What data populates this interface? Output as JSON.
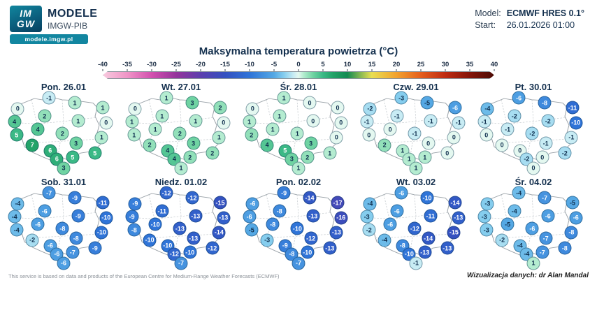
{
  "header": {
    "logo_line1": "IM",
    "logo_line2": "GW",
    "brand_title": "MODELE",
    "brand_subtitle": "IMGW-PIB",
    "brand_url": "modele.imgw.pl",
    "model_label": "Model:",
    "model_value": "ECMWF HRES 0.1°",
    "start_label": "Start:",
    "start_value": "26.01.2026 01:00"
  },
  "title": "Maksymalna temperatura powietrza (°C)",
  "footer": {
    "left": "This service is based on data and products of the European Centre for Medium-Range Weather Forecasts (ECMWF)",
    "right": "Wizualizacja danych: dr Alan Mandal"
  },
  "chart_data": {
    "type": "heatmap",
    "title": "Maksymalna temperatura powietrza (°C)",
    "unit": "°C",
    "colorbar": {
      "min": -40,
      "max": 40,
      "ticks": [
        -40,
        -35,
        -30,
        -25,
        -20,
        -15,
        -10,
        -5,
        0,
        5,
        10,
        15,
        20,
        25,
        30,
        35,
        40
      ],
      "stops": [
        {
          "t": -40,
          "c": "#f7c9de"
        },
        {
          "t": -35,
          "c": "#ef93c6"
        },
        {
          "t": -30,
          "c": "#d14fae"
        },
        {
          "t": -25,
          "c": "#93349b"
        },
        {
          "t": -20,
          "c": "#5b3fae"
        },
        {
          "t": -15,
          "c": "#3451c0"
        },
        {
          "t": -10,
          "c": "#2f74d8"
        },
        {
          "t": -5,
          "c": "#55a8e4"
        },
        {
          "t": -3,
          "c": "#85cdee"
        },
        {
          "t": -1,
          "c": "#c8ecf4"
        },
        {
          "t": 0,
          "c": "#e4f8f0"
        },
        {
          "t": 1,
          "c": "#b4ecd0"
        },
        {
          "t": 3,
          "c": "#6fd3a2"
        },
        {
          "t": 5,
          "c": "#3bb986"
        },
        {
          "t": 7,
          "c": "#23a369"
        },
        {
          "t": 10,
          "c": "#128a52"
        },
        {
          "t": 15,
          "c": "#e8df52"
        },
        {
          "t": 20,
          "c": "#f2a32e"
        },
        {
          "t": 25,
          "c": "#e55f1e"
        },
        {
          "t": 30,
          "c": "#bf2c12"
        },
        {
          "t": 35,
          "c": "#86150a"
        },
        {
          "t": 40,
          "c": "#4d0b05"
        }
      ]
    },
    "stations": [
      {
        "name": "szczecin",
        "x": 9,
        "y": 20
      },
      {
        "name": "gdansk",
        "x": 37,
        "y": 7
      },
      {
        "name": "olsztyn",
        "x": 60,
        "y": 13
      },
      {
        "name": "bialystok",
        "x": 85,
        "y": 19
      },
      {
        "name": "gorzow",
        "x": 6,
        "y": 36
      },
      {
        "name": "bydgoszcz",
        "x": 33,
        "y": 29
      },
      {
        "name": "warszawa",
        "x": 63,
        "y": 35
      },
      {
        "name": "siedlce",
        "x": 88,
        "y": 37
      },
      {
        "name": "zielona-gora",
        "x": 8,
        "y": 52
      },
      {
        "name": "poznan",
        "x": 27,
        "y": 45
      },
      {
        "name": "lodz",
        "x": 49,
        "y": 50
      },
      {
        "name": "lublin",
        "x": 84,
        "y": 55
      },
      {
        "name": "wroclaw",
        "x": 22,
        "y": 64
      },
      {
        "name": "opole",
        "x": 38,
        "y": 71
      },
      {
        "name": "kielce",
        "x": 61,
        "y": 62
      },
      {
        "name": "katowice",
        "x": 44,
        "y": 81
      },
      {
        "name": "krakow",
        "x": 58,
        "y": 79
      },
      {
        "name": "rzeszow",
        "x": 78,
        "y": 74
      },
      {
        "name": "zakopane",
        "x": 50,
        "y": 92
      }
    ],
    "days": [
      {
        "label": "Pon. 26.01",
        "values": [
          0,
          -1,
          1,
          1,
          4,
          2,
          1,
          0,
          5,
          4,
          2,
          1,
          7,
          6,
          3,
          6,
          5,
          5,
          3
        ]
      },
      {
        "label": "Wt. 27.01",
        "values": [
          0,
          1,
          3,
          2,
          1,
          1,
          1,
          0,
          1,
          1,
          2,
          1,
          2,
          4,
          3,
          4,
          2,
          2,
          1
        ]
      },
      {
        "label": "Śr. 28.01",
        "values": [
          0,
          1,
          0,
          0,
          1,
          1,
          0,
          0,
          2,
          1,
          1,
          0,
          4,
          5,
          3,
          3,
          2,
          1,
          1
        ]
      },
      {
        "label": "Czw. 29.01",
        "values": [
          -2,
          -3,
          -5,
          -6,
          -1,
          -1,
          -1,
          -1,
          0,
          0,
          -1,
          0,
          2,
          1,
          0,
          1,
          1,
          0,
          1
        ]
      },
      {
        "label": "Pt. 30.01",
        "values": [
          -4,
          -6,
          -8,
          -11,
          -1,
          -2,
          -2,
          -10,
          0,
          -1,
          -2,
          -1,
          0,
          0,
          -1,
          -2,
          0,
          -2,
          0
        ]
      },
      {
        "label": "Sob. 31.01",
        "values": [
          -4,
          -7,
          -9,
          -11,
          -4,
          -6,
          -9,
          -10,
          -4,
          -6,
          -8,
          -10,
          -2,
          -6,
          -8,
          -6,
          -7,
          -9,
          -6
        ]
      },
      {
        "label": "Niedz. 01.02",
        "values": [
          -9,
          -12,
          -12,
          -15,
          -9,
          -11,
          -13,
          -13,
          -8,
          -10,
          -13,
          -14,
          -10,
          -10,
          -13,
          -12,
          -10,
          -12,
          -7
        ]
      },
      {
        "label": "Pon. 02.02",
        "values": [
          -6,
          -9,
          -14,
          -17,
          -6,
          -8,
          -13,
          -16,
          -5,
          -8,
          -10,
          -13,
          -3,
          -9,
          -12,
          -8,
          -10,
          -13,
          -7
        ]
      },
      {
        "label": "Wt. 03.02",
        "values": [
          -4,
          -6,
          -10,
          -14,
          -3,
          -6,
          -11,
          -13,
          -2,
          -6,
          -12,
          -15,
          -4,
          -8,
          -14,
          -10,
          -13,
          -13,
          -1
        ]
      },
      {
        "label": "Śr. 04.02",
        "values": [
          -3,
          -4,
          -7,
          -5,
          -3,
          -4,
          -6,
          -6,
          -3,
          -5,
          -6,
          -8,
          -2,
          -4,
          -7,
          -4,
          -7,
          -8,
          1
        ]
      }
    ]
  }
}
